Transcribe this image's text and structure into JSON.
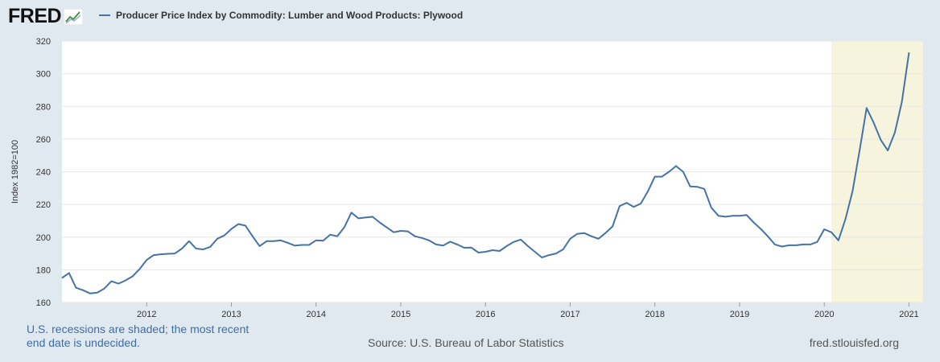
{
  "brand": {
    "logo_text": "FRED",
    "logo_icon": "chart-trend-icon"
  },
  "colors": {
    "series": "#4572a7",
    "recession": "#f6f4dc",
    "background": "#e1e9f0",
    "plot": "#ffffff",
    "grid": "#e6e6e6"
  },
  "footer": {
    "recession_note_line1": "U.S. recessions are shaded; the most recent",
    "recession_note_line2": "end date is undecided.",
    "source": "Source: U.S. Bureau of Labor Statistics",
    "site": "fred.stlouisfed.org"
  },
  "chart_data": {
    "type": "line",
    "legend": "top-left",
    "grid": true,
    "ylabel": "Index 1982=100",
    "ylim": [
      160,
      320
    ],
    "yticks": [
      160,
      180,
      200,
      220,
      240,
      260,
      280,
      300,
      320
    ],
    "xlim": [
      "2011-01",
      "2021-03"
    ],
    "xticks": [
      "2012",
      "2013",
      "2014",
      "2015",
      "2016",
      "2017",
      "2018",
      "2019",
      "2020",
      "2021"
    ],
    "recessions": [
      {
        "start": "2020-02",
        "end": "2021-03"
      }
    ],
    "series": [
      {
        "name": "Producer Price Index by Commodity: Lumber and Wood Products: Plywood",
        "x": [
          "2011-01",
          "2011-02",
          "2011-03",
          "2011-04",
          "2011-05",
          "2011-06",
          "2011-07",
          "2011-08",
          "2011-09",
          "2011-10",
          "2011-11",
          "2011-12",
          "2012-01",
          "2012-02",
          "2012-03",
          "2012-04",
          "2012-05",
          "2012-06",
          "2012-07",
          "2012-08",
          "2012-09",
          "2012-10",
          "2012-11",
          "2012-12",
          "2013-01",
          "2013-02",
          "2013-03",
          "2013-04",
          "2013-05",
          "2013-06",
          "2013-07",
          "2013-08",
          "2013-09",
          "2013-10",
          "2013-11",
          "2013-12",
          "2014-01",
          "2014-02",
          "2014-03",
          "2014-04",
          "2014-05",
          "2014-06",
          "2014-07",
          "2014-08",
          "2014-09",
          "2014-10",
          "2014-11",
          "2014-12",
          "2015-01",
          "2015-02",
          "2015-03",
          "2015-04",
          "2015-05",
          "2015-06",
          "2015-07",
          "2015-08",
          "2015-09",
          "2015-10",
          "2015-11",
          "2015-12",
          "2016-01",
          "2016-02",
          "2016-03",
          "2016-04",
          "2016-05",
          "2016-06",
          "2016-07",
          "2016-08",
          "2016-09",
          "2016-10",
          "2016-11",
          "2016-12",
          "2017-01",
          "2017-02",
          "2017-03",
          "2017-04",
          "2017-05",
          "2017-06",
          "2017-07",
          "2017-08",
          "2017-09",
          "2017-10",
          "2017-11",
          "2017-12",
          "2018-01",
          "2018-02",
          "2018-03",
          "2018-04",
          "2018-05",
          "2018-06",
          "2018-07",
          "2018-08",
          "2018-09",
          "2018-10",
          "2018-11",
          "2018-12",
          "2019-01",
          "2019-02",
          "2019-03",
          "2019-04",
          "2019-05",
          "2019-06",
          "2019-07",
          "2019-08",
          "2019-09",
          "2019-10",
          "2019-11",
          "2019-12",
          "2020-01",
          "2020-02",
          "2020-03",
          "2020-04",
          "2020-05",
          "2020-06",
          "2020-07",
          "2020-08",
          "2020-09",
          "2020-10",
          "2020-11",
          "2020-12",
          "2021-01",
          "2021-02",
          "2021-03"
        ],
        "values": [
          175,
          178,
          169,
          167.5,
          165.5,
          166,
          168.5,
          173,
          171.5,
          173.5,
          176,
          180.5,
          186,
          189,
          189.5,
          189.8,
          190,
          193,
          197.5,
          193,
          192.5,
          194,
          199,
          201,
          205,
          208,
          207,
          200.5,
          194.5,
          197.5,
          197.5,
          198,
          196.5,
          194.8,
          195.2,
          195.2,
          198,
          197.8,
          201.5,
          200.5,
          206,
          215,
          211.5,
          212,
          212.5,
          209,
          206,
          203,
          203.8,
          203.5,
          200.5,
          199.5,
          198,
          195.5,
          194.8,
          197.2,
          195.5,
          193.5,
          193.6,
          190.5,
          191,
          192,
          191.5,
          194.5,
          197,
          198.5,
          194.5,
          191,
          187.5,
          189,
          190,
          192.5,
          199,
          202,
          202.5,
          200.5,
          199,
          202.5,
          206.5,
          219,
          221,
          218.5,
          220.5,
          228,
          237,
          237,
          240,
          243.5,
          240,
          231,
          230.8,
          229.5,
          218,
          213,
          212.5,
          213,
          213,
          213.5,
          209,
          205,
          200.5,
          195.5,
          194.2,
          195,
          195,
          195.5,
          195.5,
          197,
          204.8,
          203,
          198,
          211,
          228,
          253,
          279,
          270,
          259.5,
          253,
          264,
          283,
          313,
          null,
          null
        ]
      }
    ]
  }
}
